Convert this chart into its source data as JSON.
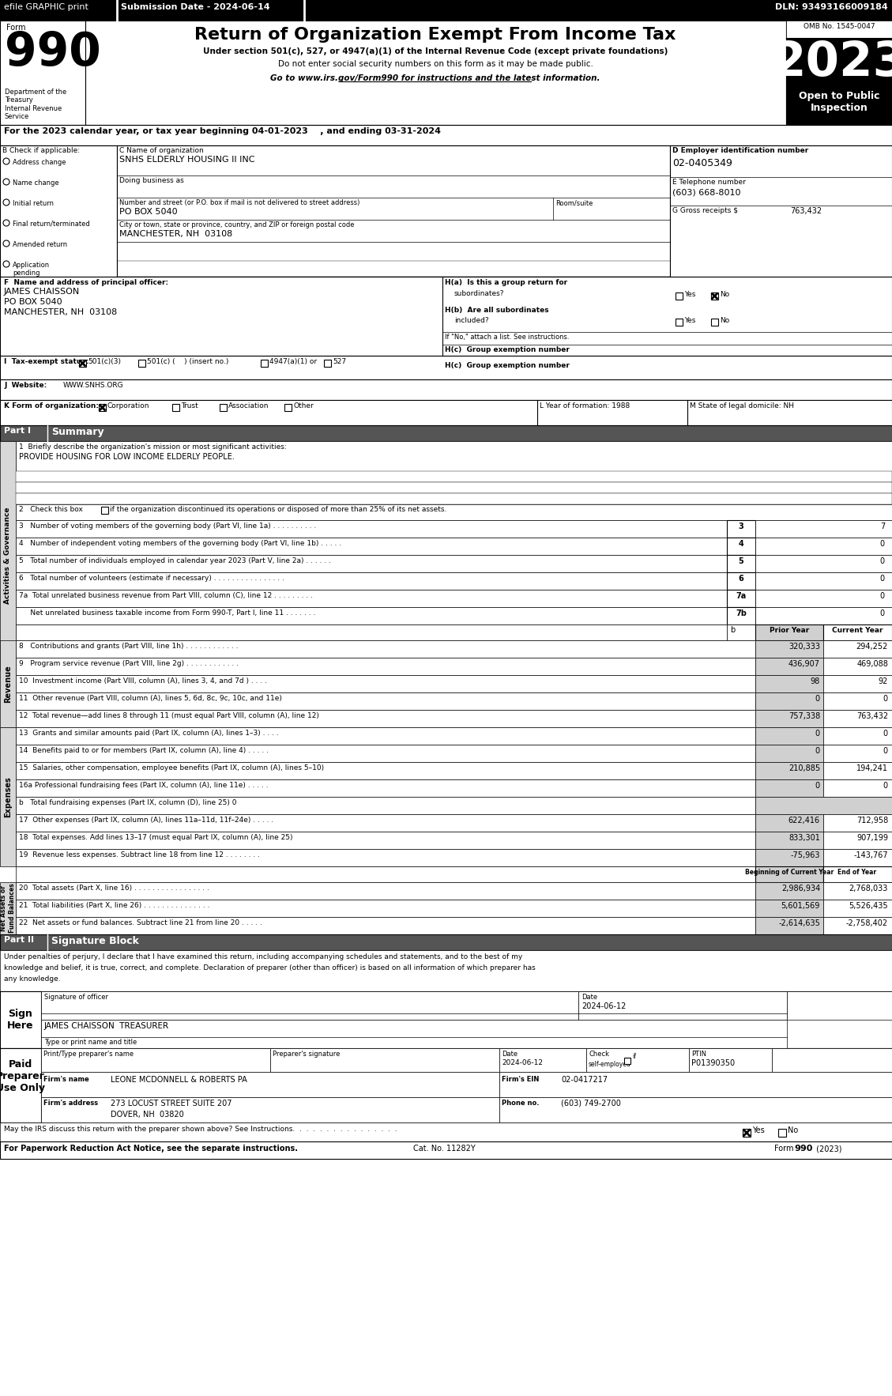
{
  "title": "Return of Organization Exempt From Income Tax",
  "subtitle1": "Under section 501(c), 527, or 4947(a)(1) of the Internal Revenue Code (except private foundations)",
  "subtitle2": "Do not enter social security numbers on this form as it may be made public.",
  "subtitle3": "Go to www.irs.gov/Form990 for instructions and the latest information.",
  "year": "2023",
  "omb": "OMB No. 1545-0047",
  "open_to_public": "Open to Public\nInspection",
  "dept_treasury": "Department of the\nTreasury\nInternal Revenue\nService",
  "tax_year_line": "For the 2023 calendar year, or tax year beginning 04-01-2023    , and ending 03-31-2024",
  "org_name": "SNHS ELDERLY HOUSING II INC",
  "dba_label": "Doing business as",
  "address_label": "Number and street (or P.O. box if mail is not delivered to street address)",
  "address_value": "PO BOX 5040",
  "room_label": "Room/suite",
  "city_label": "City or town, state or province, country, and ZIP or foreign postal code",
  "city_value": "MANCHESTER, NH  03108",
  "ein": "02-0405349",
  "phone": "(603) 668-8010",
  "gross_receipts": "763,432",
  "officer_name": "JAMES CHAISSON",
  "officer_addr1": "PO BOX 5040",
  "officer_addr2": "MANCHESTER, NH  03108",
  "hb_note": "If \"No,\" attach a list. See instructions.",
  "i_501c3": "501(c)(3)",
  "i_501c": "501(c) (    ) (insert no.)",
  "i_4947": "4947(a)(1) or",
  "i_527": "527",
  "j_website": "WWW.SNHS.ORG",
  "k_corporation": "Corporation",
  "k_trust": "Trust",
  "k_assoc": "Association",
  "k_other": "Other",
  "l_label": "L Year of formation: 1988",
  "m_label": "M State of legal domicile: NH",
  "part1_label": "Part I",
  "part1_title": "Summary",
  "line1_label": "1  Briefly describe the organization's mission or most significant activities:",
  "line1_value": "PROVIDE HOUSING FOR LOW INCOME ELDERLY PEOPLE.",
  "line3_label": "3   Number of voting members of the governing body (Part VI, line 1a) . . . . . . . . . .",
  "line3_val": "7",
  "line4_label": "4   Number of independent voting members of the governing body (Part VI, line 1b) . . . . .",
  "line4_val": "0",
  "line5_label": "5   Total number of individuals employed in calendar year 2023 (Part V, line 2a) . . . . . .",
  "line5_val": "0",
  "line6_label": "6   Total number of volunteers (estimate if necessary) . . . . . . . . . . . . . . . .",
  "line6_val": "0",
  "line7a_label": "7a  Total unrelated business revenue from Part VIII, column (C), line 12 . . . . . . . . .",
  "line7a_val": "0",
  "line7b_label": "     Net unrelated business taxable income from Form 990-T, Part I, line 11 . . . . . . .",
  "line7b_val": "0",
  "col_prior": "Prior Year",
  "col_current": "Current Year",
  "line8_label": "8   Contributions and grants (Part VIII, line 1h) . . . . . . . . . . . .",
  "line8_prior": "320,333",
  "line8_current": "294,252",
  "line9_label": "9   Program service revenue (Part VIII, line 2g) . . . . . . . . . . . .",
  "line9_prior": "436,907",
  "line9_current": "469,088",
  "line10_label": "10  Investment income (Part VIII, column (A), lines 3, 4, and 7d ) . . . .",
  "line10_prior": "98",
  "line10_current": "92",
  "line11_label": "11  Other revenue (Part VIII, column (A), lines 5, 6d, 8c, 9c, 10c, and 11e)",
  "line11_prior": "0",
  "line11_current": "0",
  "line12_label": "12  Total revenue—add lines 8 through 11 (must equal Part VIII, column (A), line 12)",
  "line12_prior": "757,338",
  "line12_current": "763,432",
  "line13_label": "13  Grants and similar amounts paid (Part IX, column (A), lines 1–3) . . . .",
  "line13_prior": "0",
  "line13_current": "0",
  "line14_label": "14  Benefits paid to or for members (Part IX, column (A), line 4) . . . . .",
  "line14_prior": "0",
  "line14_current": "0",
  "line15_label": "15  Salaries, other compensation, employee benefits (Part IX, column (A), lines 5–10)",
  "line15_prior": "210,885",
  "line15_current": "194,241",
  "line16a_label": "16a Professional fundraising fees (Part IX, column (A), line 11e) . . . . .",
  "line16a_prior": "0",
  "line16a_current": "0",
  "line16b_label": "b   Total fundraising expenses (Part IX, column (D), line 25) 0",
  "line17_label": "17  Other expenses (Part IX, column (A), lines 11a–11d, 11f–24e) . . . . .",
  "line17_prior": "622,416",
  "line17_current": "712,958",
  "line18_label": "18  Total expenses. Add lines 13–17 (must equal Part IX, column (A), line 25)",
  "line18_prior": "833,301",
  "line18_current": "907,199",
  "line19_label": "19  Revenue less expenses. Subtract line 18 from line 12 . . . . . . . .",
  "line19_prior": "-75,963",
  "line19_current": "-143,767",
  "col_begin": "Beginning of Current Year",
  "col_end": "End of Year",
  "line20_label": "20  Total assets (Part X, line 16) . . . . . . . . . . . . . . . . .",
  "line20_begin": "2,986,934",
  "line20_end": "2,768,033",
  "line21_label": "21  Total liabilities (Part X, line 26) . . . . . . . . . . . . . . .",
  "line21_begin": "5,601,569",
  "line21_end": "5,526,435",
  "line22_label": "22  Net assets or fund balances. Subtract line 21 from line 20 . . . . .",
  "line22_begin": "-2,614,635",
  "line22_end": "-2,758,402",
  "part2_label": "Part II",
  "part2_title": "Signature Block",
  "sig_text1": "Under penalties of perjury, I declare that I have examined this return, including accompanying schedules and statements, and to the best of my",
  "sig_text2": "knowledge and belief, it is true, correct, and complete. Declaration of preparer (other than officer) is based on all information of which preparer has",
  "sig_text3": "any knowledge.",
  "sign_here": "Sign\nHere",
  "sign_date": "2024-06-12",
  "sign_name": "JAMES CHAISSON  TREASURER",
  "paid_prep": "Paid\nPreparer\nUse Only",
  "prep_date": "2024-06-12",
  "prep_ptin": "P01390350",
  "firm_name": "LEONE MCDONNELL & ROBERTS PA",
  "firm_ein": "02-0417217",
  "firm_addr": "273 LOCUST STREET SUITE 207",
  "firm_city": "DOVER, NH  03820",
  "firm_phone": "(603) 749-2700",
  "may_discuss": "May the IRS discuss this return with the preparer shown above? See Instructions.  .  .  .  .  .  .  .  .  .  .  .  .  .  .  .",
  "footer": "For Paperwork Reduction Act Notice, see the separate instructions.",
  "cat_no": "Cat. No. 11282Y",
  "form_footer": "Form 990 (2023)",
  "sidebar_activities": "Activities & Governance",
  "sidebar_revenue": "Revenue",
  "sidebar_expenses": "Expenses",
  "sidebar_netassets": "Net Assets or\nFund Balances"
}
